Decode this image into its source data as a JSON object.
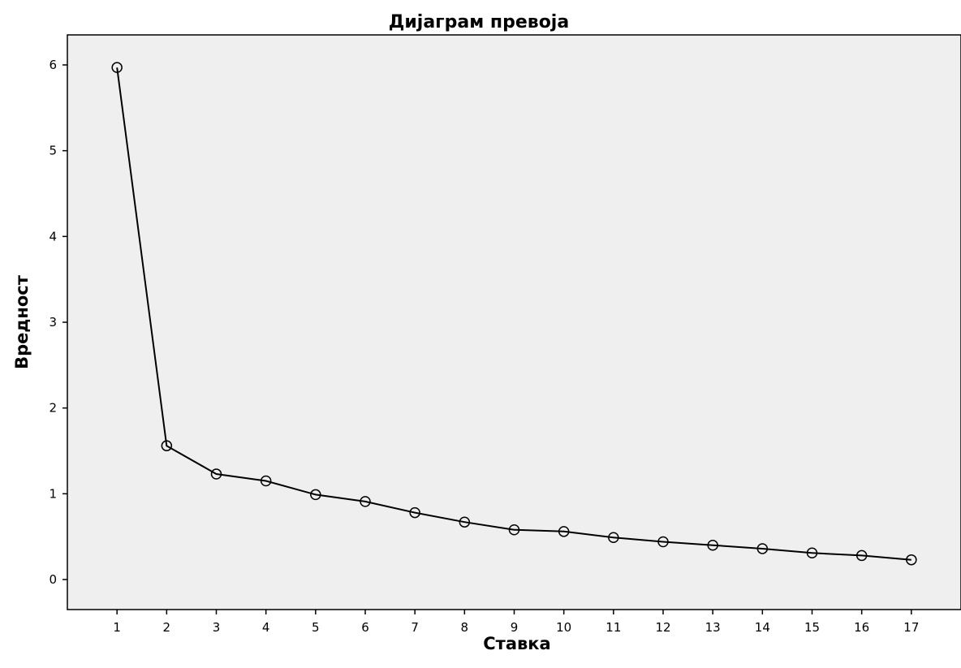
{
  "chart_data": {
    "type": "line",
    "title": "Дијаграм превоја",
    "xlabel": "Ставка",
    "ylabel": "Вредност",
    "x": [
      1,
      2,
      3,
      4,
      5,
      6,
      7,
      8,
      9,
      10,
      11,
      12,
      13,
      14,
      15,
      16,
      17
    ],
    "series": [
      {
        "values": [
          5.97,
          1.56,
          1.23,
          1.15,
          0.99,
          0.91,
          0.78,
          0.67,
          0.58,
          0.56,
          0.49,
          0.44,
          0.4,
          0.36,
          0.31,
          0.28,
          0.23
        ]
      }
    ],
    "xlim": [
      0,
      18
    ],
    "ylim": [
      -0.35,
      6.35
    ],
    "y_ticks": [
      0,
      1,
      2,
      3,
      4,
      5,
      6
    ],
    "grid": false,
    "legend": "none",
    "markers": "open-circle",
    "colors": {
      "plot_background": "#efefef",
      "line": "#000000",
      "marker_stroke": "#000000"
    }
  }
}
